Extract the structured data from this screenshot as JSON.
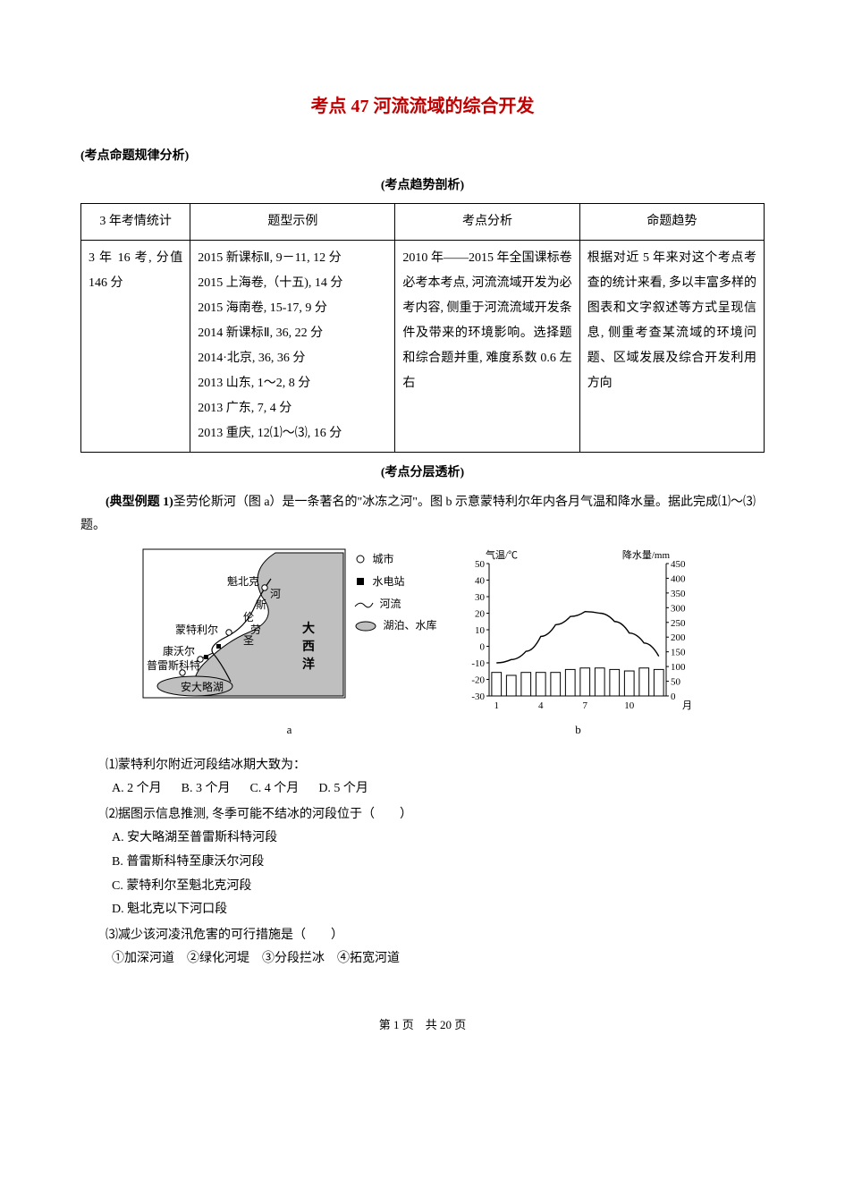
{
  "title": "考点 47 河流流域的综合开发",
  "section_rule": "(考点命题规律分析)",
  "section_trend": "(考点趋势剖析)",
  "section_layer": "(考点分层透析)",
  "table": {
    "headers": [
      "3 年考情统计",
      "题型示例",
      "考点分析",
      "命题趋势"
    ],
    "row": {
      "stat": "3 年 16 考, 分值 146 分",
      "examples": [
        "2015 新课标Ⅱ, 9－11, 12 分",
        "2015 上海卷,（十五), 14 分",
        "2015 海南卷, 15-17, 9 分",
        "2014 新课标Ⅱ, 36, 22 分",
        "2014·北京, 36, 36 分",
        "2013 山东, 1～2, 8 分",
        "2013 广东, 7, 4 分",
        "2013 重庆, 12⑴～⑶, 16 分"
      ],
      "analysis": "2010 年——2015 年全国课标卷必考本考点, 河流流域开发为必考内容, 侧重于河流流域开发条件及带来的环境影响。选择题和综合题并重, 难度系数 0.6 左右",
      "trend": "根据对近 5 年来对这个考点考查的统计来看, 多以丰富多样的图表和文字叙述等方式呈现信息, 侧重考查某流域的环境问题、区域发展及综合开发利用方向"
    }
  },
  "example": {
    "lead_bold": "(典型例题 1)",
    "lead_rest": "圣劳伦斯河（图 a）是一条著名的\"冰冻之河\"。图 b 示意蒙特利尔年内各月气温和降水量。据此完成⑴～⑶题。",
    "q1": "⑴蒙特利尔附近河段结冰期大致为：",
    "q1_opts": [
      "A. 2 个月",
      "B. 3 个月",
      "C. 4 个月",
      "D. 5 个月"
    ],
    "q2": "⑵据图示信息推测, 冬季可能不结冰的河段位于（　　）",
    "q2_opts": [
      "A. 安大略湖至普雷斯科特河段",
      "B. 普雷斯科特至康沃尔河段",
      "C. 蒙特利尔至魁北克河段",
      "D. 魁北克以下河口段"
    ],
    "q3": "⑶减少该河凌汛危害的可行措施是（　　）",
    "q3_items": "①加深河道　②绿化河堤　③分段拦冰　④拓宽河道"
  },
  "map": {
    "caption": "a",
    "labels": {
      "quebec": "魁北克",
      "montreal": "蒙特利尔",
      "cornwall": "康沃尔",
      "prescott": "普雷斯科特",
      "ontario": "安大略湖",
      "sheng": "圣",
      "lao": "劳",
      "lun": "伦",
      "si": "斯",
      "he": "河",
      "ocean1": "大",
      "ocean2": "西",
      "ocean3": "洋"
    },
    "legend": {
      "city": "城市",
      "dam": "水电站",
      "river": "河流",
      "lake": "湖泊、水库"
    },
    "colors": {
      "border": "#000000",
      "water": "#bfbfbf",
      "land": "#ffffff"
    }
  },
  "chart": {
    "caption": "b",
    "title_left": "气温/℃",
    "title_right": "降水量/mm",
    "x_label": "月",
    "x_ticks": [
      1,
      4,
      7,
      10
    ],
    "y_left": {
      "min": -30,
      "max": 50,
      "step": 10
    },
    "y_right": {
      "min": 0,
      "max": 450,
      "step": 50
    },
    "precip": [
      80,
      70,
      80,
      80,
      80,
      90,
      95,
      95,
      90,
      85,
      95,
      90
    ],
    "temp": [
      -10,
      -8,
      -3,
      6,
      13,
      18,
      21,
      20,
      15,
      8,
      2,
      -6
    ],
    "colors": {
      "axis": "#000000",
      "bar_fill": "#ffffff",
      "bar_stroke": "#000000",
      "line": "#000000",
      "bg": "#ffffff"
    },
    "bar_width": 0.65,
    "font_size": 11
  },
  "footer": {
    "page": "第 1 页",
    "total": "共 20 页"
  }
}
